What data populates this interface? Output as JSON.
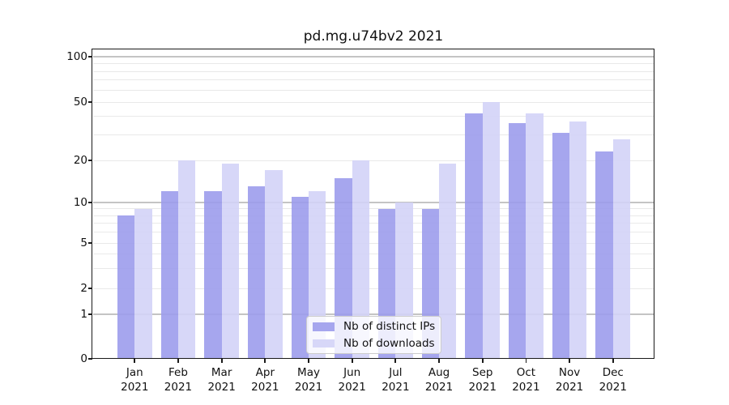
{
  "chart_data": {
    "type": "bar",
    "title": "pd.mg.u74bv2 2021",
    "categories": [
      "Jan 2021",
      "Feb 2021",
      "Mar 2021",
      "Apr 2021",
      "May 2021",
      "Jun 2021",
      "Jul 2021",
      "Aug 2021",
      "Sep 2021",
      "Oct 2021",
      "Nov 2021",
      "Dec 2021"
    ],
    "series": [
      {
        "name": "Nb of distinct IPs",
        "color": "#9c9cec",
        "values": [
          8,
          12,
          12,
          13,
          11,
          15,
          9,
          9,
          42,
          36,
          31,
          23
        ]
      },
      {
        "name": "Nb of downloads",
        "color": "#d3d3f7",
        "values": [
          9,
          20,
          19,
          17,
          12,
          20,
          10,
          19,
          50,
          42,
          37,
          28
        ]
      }
    ],
    "yticks": [
      0,
      1,
      2,
      5,
      10,
      20,
      50,
      100
    ],
    "yscale": "log-like",
    "ylim": [
      0,
      112
    ],
    "xlabel": "",
    "ylabel": "",
    "grid": true,
    "legend_position": "inside lower center"
  }
}
